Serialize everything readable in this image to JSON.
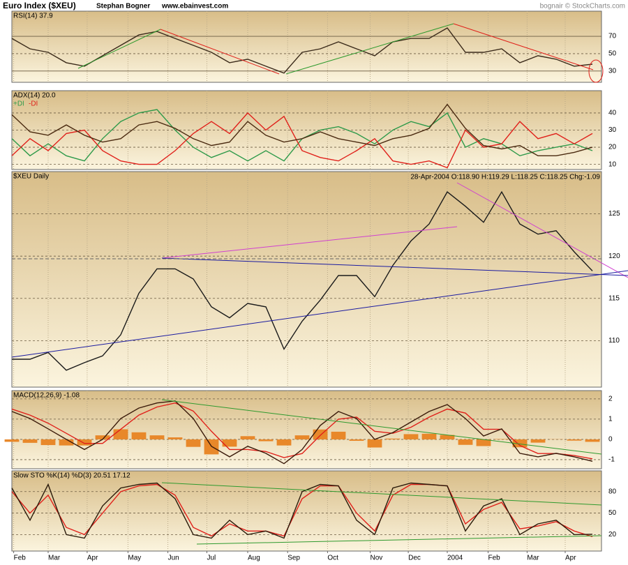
{
  "header": {
    "title": "Euro Index ($XEU)",
    "author": "Stephan Bogner",
    "site": "www.ebainvest.com",
    "credit": "bognair © StockCharts.com"
  },
  "chart_data": [
    {
      "type": "line",
      "title": "RSI(14) 37.9",
      "x": [
        0,
        2,
        4,
        6,
        8,
        10,
        12,
        14,
        16,
        18,
        20,
        22,
        24,
        26,
        28,
        30,
        32,
        34,
        36,
        38,
        40,
        42,
        44,
        46,
        48,
        50,
        52,
        54,
        56,
        58,
        60,
        62,
        64
      ],
      "xlim": [
        0,
        65
      ],
      "ylim": [
        17,
        99
      ],
      "yticks": [
        30,
        50,
        70
      ],
      "grid": true,
      "series": [
        {
          "color": "#3a2a1a",
          "values": [
            67.6,
            55.6,
            51.6,
            39.6,
            35.6,
            47.6,
            59.6,
            71.6,
            75.6,
            67.6,
            59.6,
            51.6,
            39.6,
            43.6,
            35.6,
            27.6,
            51.6,
            55.6,
            63.6,
            55.6,
            47.6,
            63.6,
            67.6,
            67.6,
            79.6,
            51.6,
            51.6,
            55.6,
            39.6,
            47.6,
            43.6,
            35.6,
            37.9
          ]
        }
      ]
    },
    {
      "type": "line",
      "title": "ADX(14) 20.0",
      "x": [
        0,
        2,
        4,
        6,
        8,
        10,
        12,
        14,
        16,
        18,
        20,
        22,
        24,
        26,
        28,
        30,
        32,
        34,
        36,
        38,
        40,
        42,
        44,
        46,
        48,
        50,
        52,
        54,
        56,
        58,
        60,
        62,
        64
      ],
      "xlim": [
        0,
        65
      ],
      "ylim": [
        7,
        53
      ],
      "yticks": [
        10,
        20,
        30,
        40
      ],
      "grid": true,
      "series": [
        {
          "name": "+DI",
          "color": "#2e9a4a",
          "values": [
            25,
            15,
            22,
            15,
            12,
            25,
            35,
            40,
            42,
            30,
            20,
            14,
            18,
            12,
            18,
            12,
            25,
            30,
            32,
            28,
            22,
            30,
            35,
            32,
            40,
            20,
            25,
            22,
            15,
            18,
            20,
            22,
            18
          ]
        },
        {
          "name": "-DI",
          "color": "#e0201a",
          "values": [
            15,
            25,
            18,
            28,
            30,
            18,
            12,
            10,
            10,
            18,
            28,
            35,
            28,
            40,
            30,
            38,
            18,
            14,
            12,
            18,
            25,
            12,
            10,
            12,
            8,
            30,
            20,
            22,
            35,
            25,
            28,
            22,
            28
          ]
        },
        {
          "color": "#4a2a10",
          "values": [
            39,
            29,
            27,
            33,
            27,
            23,
            25,
            33,
            35,
            31,
            25,
            21,
            23,
            35,
            27,
            23,
            25,
            29,
            25,
            23,
            21,
            25,
            27,
            31,
            45,
            31,
            21,
            19,
            21,
            15,
            15,
            17,
            20
          ]
        }
      ]
    },
    {
      "type": "line",
      "title": "$XEU Daily",
      "subtitle": "28-Apr-2004 O:118.90 H:119.29 L:118.25 C:118.25 Chg:-1.09",
      "x": [
        0,
        2,
        4,
        6,
        8,
        10,
        12,
        14,
        16,
        18,
        20,
        22,
        24,
        26,
        28,
        30,
        32,
        34,
        36,
        38,
        40,
        42,
        44,
        46,
        48,
        50,
        52,
        54,
        56,
        58,
        60,
        62,
        64
      ],
      "xlim": [
        0,
        65
      ],
      "ylim": [
        104.5,
        130
      ],
      "yticks": [
        110,
        115,
        120,
        125
      ],
      "grid": true,
      "series": [
        {
          "color": "#1a1a1a",
          "values": [
            107.8,
            107.8,
            108.6,
            106.5,
            107.4,
            108.2,
            110.7,
            115.6,
            118.5,
            118.5,
            117.3,
            114.0,
            112.7,
            114.4,
            114.0,
            109.0,
            112.3,
            114.8,
            117.7,
            117.7,
            115.2,
            118.9,
            121.8,
            123.8,
            127.6,
            125.9,
            124.0,
            127.6,
            123.8,
            122.6,
            123.0,
            120.5,
            118.25
          ]
        }
      ]
    },
    {
      "type": "line",
      "title": "MACD(12,26,9) -1.08",
      "x": [
        0,
        2,
        4,
        6,
        8,
        10,
        12,
        14,
        16,
        18,
        20,
        22,
        24,
        26,
        28,
        30,
        32,
        34,
        36,
        38,
        40,
        42,
        44,
        46,
        48,
        50,
        52,
        54,
        56,
        58,
        60,
        62,
        64
      ],
      "xlim": [
        0,
        65
      ],
      "ylim": [
        -1.45,
        2.41
      ],
      "yticks": [
        -1,
        0,
        1,
        2
      ],
      "grid": true,
      "series": [
        {
          "kind": "bar",
          "color": "#e8882a",
          "values": [
            -0.12,
            -0.17,
            -0.28,
            -0.3,
            -0.3,
            0.2,
            0.5,
            0.35,
            0.2,
            0.1,
            -0.37,
            -0.74,
            -0.36,
            0.16,
            -0.09,
            -0.3,
            0.2,
            0.49,
            0.38,
            -0.07,
            -0.4,
            0.04,
            0.26,
            0.28,
            0.22,
            -0.27,
            -0.33,
            0.02,
            -0.39,
            -0.16,
            0.01,
            -0.06,
            -0.12
          ]
        },
        {
          "color": "#e0201a",
          "values": [
            1.5,
            1.2,
            0.8,
            0.3,
            -0.2,
            -0.2,
            0.5,
            1.2,
            1.6,
            1.8,
            1.4,
            0.4,
            -0.5,
            -0.5,
            -0.6,
            -0.9,
            -0.7,
            0.2,
            1.0,
            1.1,
            0.4,
            0.3,
            0.6,
            1.1,
            1.5,
            1.3,
            0.5,
            0.5,
            -0.3,
            -0.7,
            -0.7,
            -0.8,
            -0.96
          ]
        },
        {
          "color": "#3a1a0a",
          "values": [
            1.38,
            1.03,
            0.52,
            0,
            -0.5,
            0,
            1.03,
            1.55,
            1.8,
            1.9,
            1.03,
            -0.34,
            -0.86,
            -0.34,
            -0.69,
            -1.2,
            -0.5,
            0.69,
            1.38,
            1.03,
            0,
            0.34,
            0.86,
            1.38,
            1.72,
            1.03,
            0.17,
            0.52,
            -0.69,
            -0.86,
            -0.69,
            -0.86,
            -1.08
          ]
        }
      ]
    },
    {
      "type": "line",
      "title": "Slow STO %K(14) %D(3) 20.51 17.12",
      "x": [
        0,
        2,
        4,
        6,
        8,
        10,
        12,
        14,
        16,
        18,
        20,
        22,
        24,
        26,
        28,
        30,
        32,
        34,
        36,
        38,
        40,
        42,
        44,
        46,
        48,
        50,
        52,
        54,
        56,
        58,
        60,
        62,
        64
      ],
      "xlim": [
        0,
        65
      ],
      "ylim": [
        -3,
        109
      ],
      "yticks": [
        20,
        50,
        80
      ],
      "grid": true,
      "xticks": [
        {
          "value": 0.2,
          "label": "Feb"
        },
        {
          "value": 4,
          "label": "Mar"
        },
        {
          "value": 8.3,
          "label": "Apr"
        },
        {
          "value": 12.8,
          "label": "May"
        },
        {
          "value": 17.2,
          "label": "Jun"
        },
        {
          "value": 21.5,
          "label": "Jul"
        },
        {
          "value": 26,
          "label": "Aug"
        },
        {
          "value": 30.4,
          "label": "Sep"
        },
        {
          "value": 34.8,
          "label": "Oct"
        },
        {
          "value": 39.5,
          "label": "Nov"
        },
        {
          "value": 43.7,
          "label": "Dec"
        },
        {
          "value": 48,
          "label": "2004"
        },
        {
          "value": 52.5,
          "label": "Feb"
        },
        {
          "value": 56.8,
          "label": "Mar"
        },
        {
          "value": 61,
          "label": "Apr"
        }
      ],
      "series": [
        {
          "color": "#e0201a",
          "values": [
            80,
            50,
            75,
            30,
            20,
            50,
            80,
            88,
            90,
            75,
            30,
            18,
            35,
            25,
            25,
            18,
            70,
            88,
            88,
            50,
            25,
            75,
            90,
            90,
            88,
            35,
            55,
            65,
            28,
            32,
            38,
            25,
            17.12
          ]
        },
        {
          "color": "#2a1a0a",
          "values": [
            85,
            40,
            90,
            20,
            15,
            60,
            85,
            90,
            92,
            70,
            20,
            15,
            40,
            20,
            25,
            15,
            80,
            90,
            88,
            40,
            20,
            85,
            92,
            90,
            88,
            25,
            60,
            70,
            20,
            35,
            40,
            20,
            20.51
          ]
        }
      ]
    }
  ]
}
